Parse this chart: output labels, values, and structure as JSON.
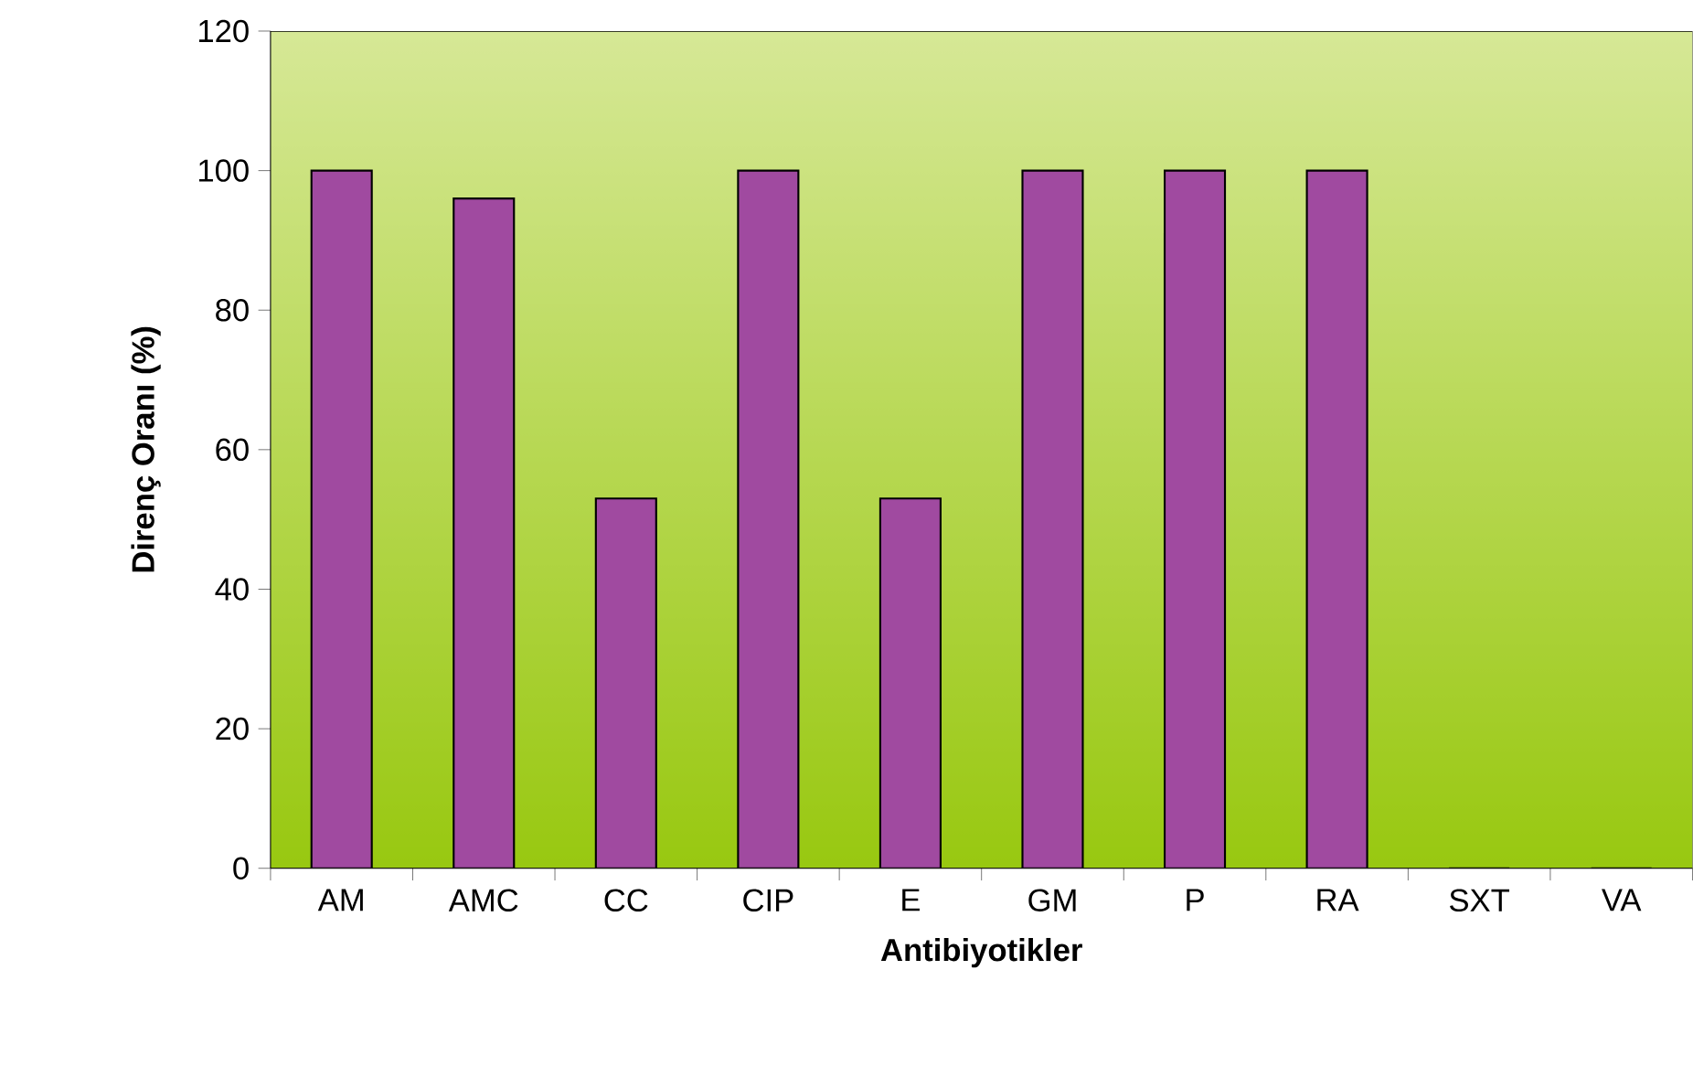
{
  "chart_data": {
    "type": "bar",
    "xlabel": "Antibiyotikler",
    "ylabel": "Direnç Oranı (%)",
    "categories": [
      "AM",
      "AMC",
      "CC",
      "CIP",
      "E",
      "GM",
      "P",
      "RA",
      "SXT",
      "VA"
    ],
    "values": [
      100,
      96,
      53,
      100,
      53,
      100,
      100,
      100,
      0,
      0
    ],
    "color": "#a04aa0",
    "ylim": [
      0,
      120
    ],
    "yticks": [
      0,
      20,
      40,
      60,
      80,
      100,
      120
    ],
    "grid": false
  }
}
